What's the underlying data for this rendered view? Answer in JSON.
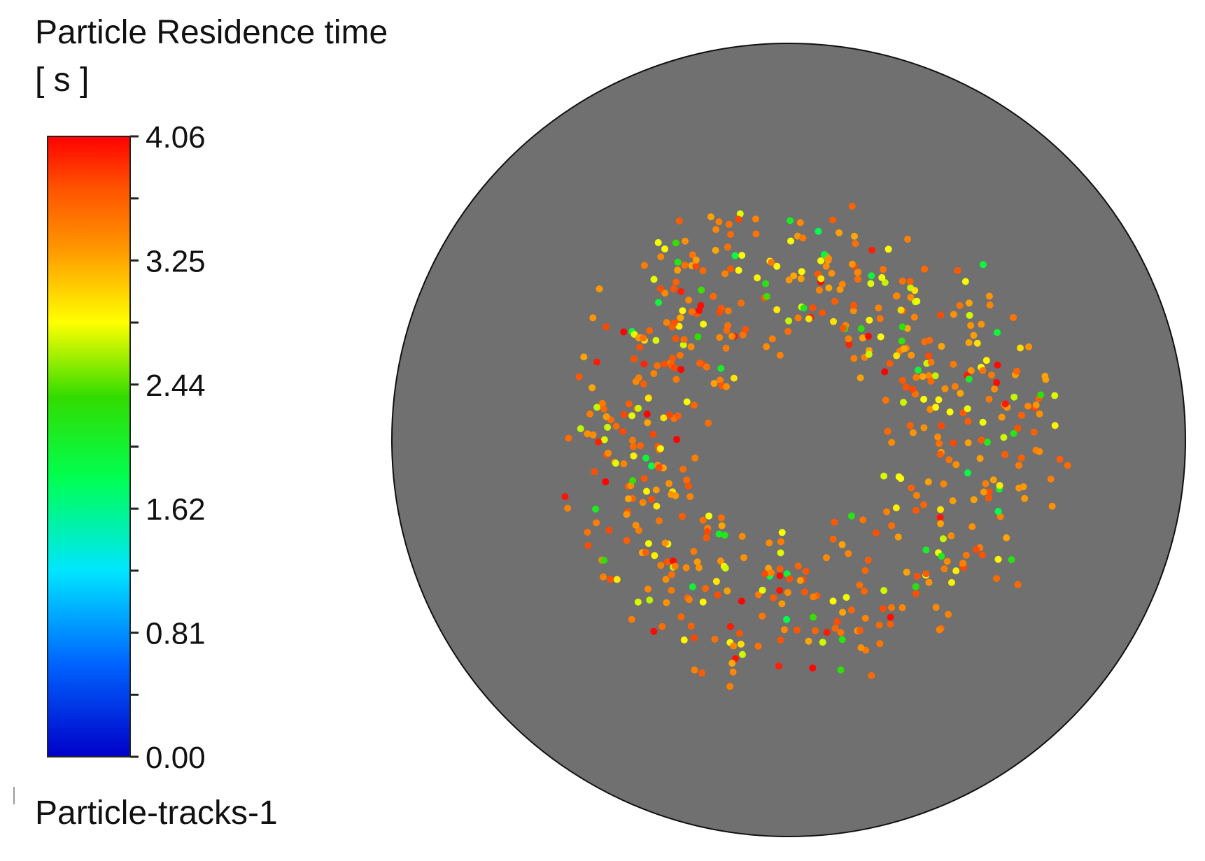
{
  "chart_data": {
    "type": "scatter",
    "title": "Particle Residence time",
    "units": "[ s ]",
    "colorbar": {
      "min": 0.0,
      "max": 4.06,
      "tick_labels": [
        "4.06",
        "3.25",
        "2.44",
        "1.62",
        "0.81",
        "0.00"
      ],
      "colormap": [
        "#0000c8",
        "#0064ff",
        "#00e6ff",
        "#00ff50",
        "#32dc00",
        "#ffff00",
        "#ff9600",
        "#ff5000",
        "#ff0000"
      ]
    },
    "series": [
      {
        "name": "Particle-tracks-1"
      }
    ],
    "domain_color": "#707070",
    "particle_count": 620
  }
}
